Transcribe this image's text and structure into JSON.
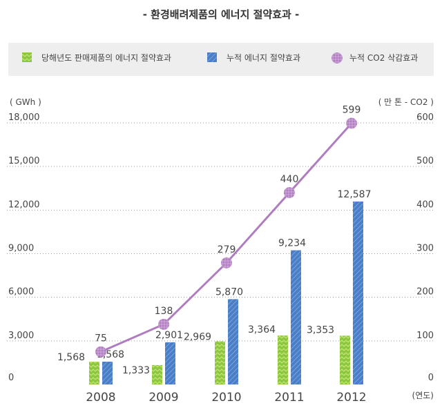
{
  "chart_data": {
    "type": "bar",
    "title": "- 환경배려제품의 에너지 절약효과 -",
    "categories": [
      "2008",
      "2009",
      "2010",
      "2011",
      "2012"
    ],
    "series": [
      {
        "name": "당해년도 판매제품의 에너지 절약효과",
        "kind": "bar",
        "axis": "left",
        "color": "#8dc63f",
        "values": [
          1568,
          1333,
          2969,
          3364,
          3353
        ],
        "labels": [
          "1,568",
          "1,333",
          "2,969",
          "3,364",
          "3,353"
        ]
      },
      {
        "name": "누적 에너지 절약효과",
        "kind": "bar",
        "axis": "left",
        "color": "#4a7fc8",
        "values": [
          1568,
          2901,
          5870,
          9234,
          12587
        ],
        "labels": [
          "1,568",
          "2,901",
          "5,870",
          "9,234",
          "12,587"
        ]
      },
      {
        "name": "누적 CO2 삭감효과",
        "kind": "line",
        "axis": "right",
        "color": "#b07cc0",
        "values": [
          75,
          138,
          279,
          440,
          599
        ],
        "labels": [
          "75",
          "138",
          "279",
          "440",
          "599"
        ]
      }
    ],
    "y_left": {
      "unit": "( GWh )",
      "ylim": [
        0,
        18000
      ],
      "ticks": [
        0,
        3000,
        6000,
        9000,
        12000,
        15000,
        18000
      ],
      "tick_labels": [
        "0",
        "3,000",
        "6,000",
        "9,000",
        "12,000",
        "15,000",
        "18,000"
      ]
    },
    "y_right": {
      "unit": "( 만 톤 - CO2 )",
      "ylim": [
        0,
        600
      ],
      "ticks": [
        0,
        100,
        200,
        300,
        400,
        500,
        600
      ],
      "tick_labels": [
        "0",
        "100",
        "200",
        "300",
        "400",
        "500",
        "600"
      ]
    },
    "x_unit": "(연도)",
    "grid": true,
    "legend_position": "top"
  }
}
